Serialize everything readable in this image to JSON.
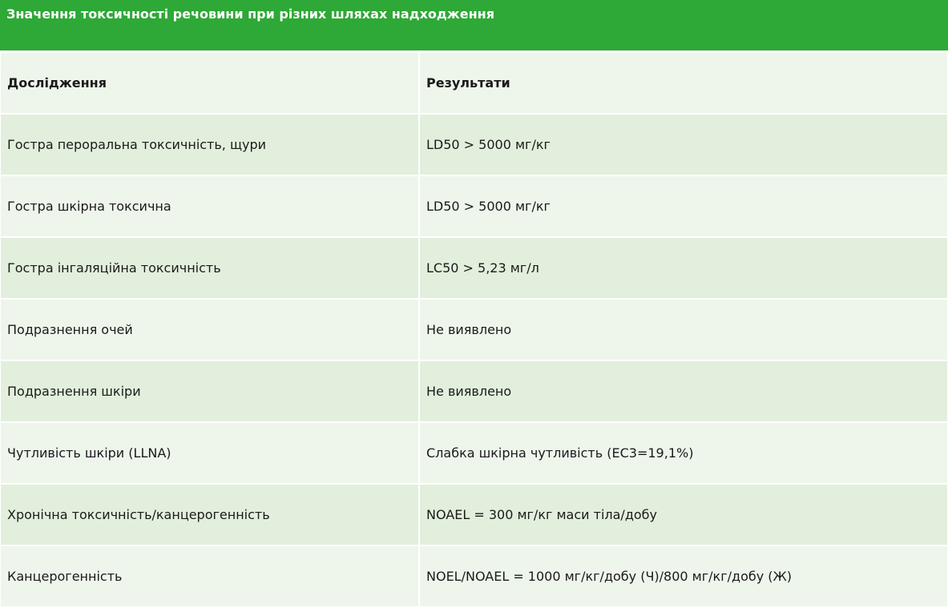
{
  "title": "Значення токсичності речовини при різних шляхах надходження",
  "columns": [
    "Дослідження",
    "Результати"
  ],
  "rows": [
    [
      "Гостра пероральна токсичність, щури",
      "LD50 > 5000 мг/кг"
    ],
    [
      "Гостра шкірна токсична",
      "LD50 > 5000 мг/кг"
    ],
    [
      "Гостра інгаляційна токсичність",
      "LC50 > 5,23 мг/л"
    ],
    [
      "Подразнення очей",
      "Не виявлено"
    ],
    [
      "Подразнення шкіри",
      "Не виявлено"
    ],
    [
      "Чутливість шкіри (LLNA)",
      "Слабка шкірна чутливість (EC3=19,1%)"
    ],
    [
      "Хронічна токсичність/канцерогенність",
      "NOAEL = 300 мг/кг маси тіла/добу"
    ],
    [
      "Канцерогенність",
      "NOEL/NOAEL = 1000 мг/кг/добу (Ч)/800 мг/кг/добу (Ж)"
    ]
  ],
  "colors": {
    "header": "#2ea836",
    "row_light": "#eef6ec",
    "row_dark": "#e2efdc"
  }
}
